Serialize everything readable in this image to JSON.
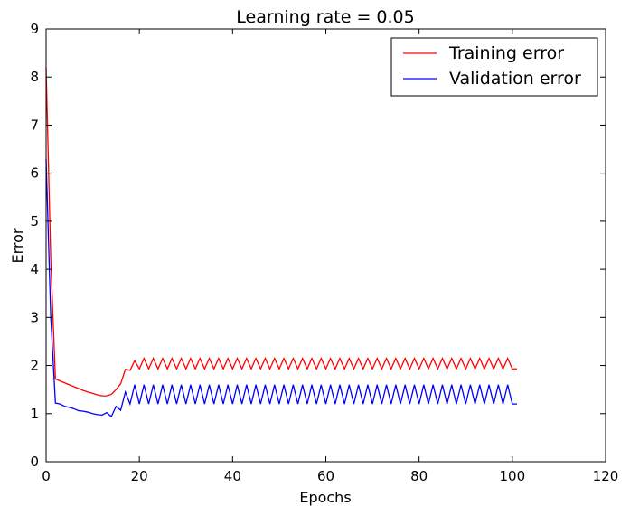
{
  "chart_data": {
    "type": "line",
    "title": "Learning rate = 0.05",
    "xlabel": "Epochs",
    "ylabel": "Error",
    "xlim": [
      0,
      120
    ],
    "ylim": [
      0,
      9
    ],
    "xticks": [
      0,
      20,
      40,
      60,
      80,
      100,
      120
    ],
    "yticks": [
      0,
      1,
      2,
      3,
      4,
      5,
      6,
      7,
      8,
      9
    ],
    "grid": false,
    "legend_position": "top-right",
    "series": [
      {
        "name": "Training error",
        "color": "#ff0000",
        "x": [
          0,
          1,
          2,
          3,
          4,
          5,
          6,
          7,
          8,
          9,
          10,
          11,
          12,
          13,
          14,
          15,
          16,
          17,
          18,
          19,
          20,
          21,
          22,
          23,
          24,
          25,
          26,
          27,
          28,
          29,
          30,
          31,
          32,
          33,
          34,
          35,
          36,
          37,
          38,
          39,
          40,
          41,
          42,
          43,
          44,
          45,
          46,
          47,
          48,
          49,
          50,
          51,
          52,
          53,
          54,
          55,
          56,
          57,
          58,
          59,
          60,
          61,
          62,
          63,
          64,
          65,
          66,
          67,
          68,
          69,
          70,
          71,
          72,
          73,
          74,
          75,
          76,
          77,
          78,
          79,
          80,
          81,
          82,
          83,
          84,
          85,
          86,
          87,
          88,
          89,
          90,
          91,
          92,
          93,
          94,
          95,
          96,
          97,
          98,
          99,
          100,
          101
        ],
        "y": [
          8.2,
          4.2,
          1.72,
          1.68,
          1.64,
          1.6,
          1.56,
          1.52,
          1.48,
          1.45,
          1.42,
          1.39,
          1.37,
          1.37,
          1.4,
          1.5,
          1.62,
          1.92,
          1.9,
          2.1,
          1.93,
          2.15,
          1.93,
          2.15,
          1.93,
          2.15,
          1.93,
          2.15,
          1.93,
          2.15,
          1.93,
          2.15,
          1.93,
          2.15,
          1.93,
          2.15,
          1.93,
          2.15,
          1.93,
          2.15,
          1.93,
          2.15,
          1.93,
          2.15,
          1.93,
          2.15,
          1.93,
          2.15,
          1.93,
          2.15,
          1.93,
          2.15,
          1.93,
          2.15,
          1.93,
          2.15,
          1.93,
          2.15,
          1.93,
          2.15,
          1.93,
          2.15,
          1.93,
          2.15,
          1.93,
          2.15,
          1.93,
          2.15,
          1.93,
          2.15,
          1.93,
          2.15,
          1.93,
          2.15,
          1.93,
          2.15,
          1.93,
          2.15,
          1.93,
          2.15,
          1.93,
          2.15,
          1.93,
          2.15,
          1.93,
          2.15,
          1.93,
          2.15,
          1.93,
          2.15,
          1.93,
          2.15,
          1.93,
          2.15,
          1.93,
          2.15,
          1.93,
          2.15,
          1.93,
          2.15,
          1.93,
          1.93
        ]
      },
      {
        "name": "Validation error",
        "color": "#0000ff",
        "x": [
          0,
          1,
          2,
          3,
          4,
          5,
          6,
          7,
          8,
          9,
          10,
          11,
          12,
          13,
          14,
          15,
          16,
          17,
          18,
          19,
          20,
          21,
          22,
          23,
          24,
          25,
          26,
          27,
          28,
          29,
          30,
          31,
          32,
          33,
          34,
          35,
          36,
          37,
          38,
          39,
          40,
          41,
          42,
          43,
          44,
          45,
          46,
          47,
          48,
          49,
          50,
          51,
          52,
          53,
          54,
          55,
          56,
          57,
          58,
          59,
          60,
          61,
          62,
          63,
          64,
          65,
          66,
          67,
          68,
          69,
          70,
          71,
          72,
          73,
          74,
          75,
          76,
          77,
          78,
          79,
          80,
          81,
          82,
          83,
          84,
          85,
          86,
          87,
          88,
          89,
          90,
          91,
          92,
          93,
          94,
          95,
          96,
          97,
          98,
          99,
          100,
          101
        ],
        "y": [
          6.3,
          3.0,
          1.22,
          1.2,
          1.15,
          1.13,
          1.1,
          1.06,
          1.05,
          1.03,
          1.0,
          0.98,
          0.97,
          1.02,
          0.94,
          1.15,
          1.07,
          1.45,
          1.2,
          1.6,
          1.2,
          1.6,
          1.2,
          1.6,
          1.2,
          1.6,
          1.2,
          1.6,
          1.2,
          1.6,
          1.2,
          1.6,
          1.2,
          1.6,
          1.2,
          1.6,
          1.2,
          1.6,
          1.2,
          1.6,
          1.2,
          1.6,
          1.2,
          1.6,
          1.2,
          1.6,
          1.2,
          1.6,
          1.2,
          1.6,
          1.2,
          1.6,
          1.2,
          1.6,
          1.2,
          1.6,
          1.2,
          1.6,
          1.2,
          1.6,
          1.2,
          1.6,
          1.2,
          1.6,
          1.2,
          1.6,
          1.2,
          1.6,
          1.2,
          1.6,
          1.2,
          1.6,
          1.2,
          1.6,
          1.2,
          1.6,
          1.2,
          1.6,
          1.2,
          1.6,
          1.2,
          1.6,
          1.2,
          1.6,
          1.2,
          1.6,
          1.2,
          1.6,
          1.2,
          1.6,
          1.2,
          1.6,
          1.2,
          1.6,
          1.2,
          1.6,
          1.2,
          1.6,
          1.2,
          1.6,
          1.2,
          1.2
        ]
      }
    ]
  }
}
